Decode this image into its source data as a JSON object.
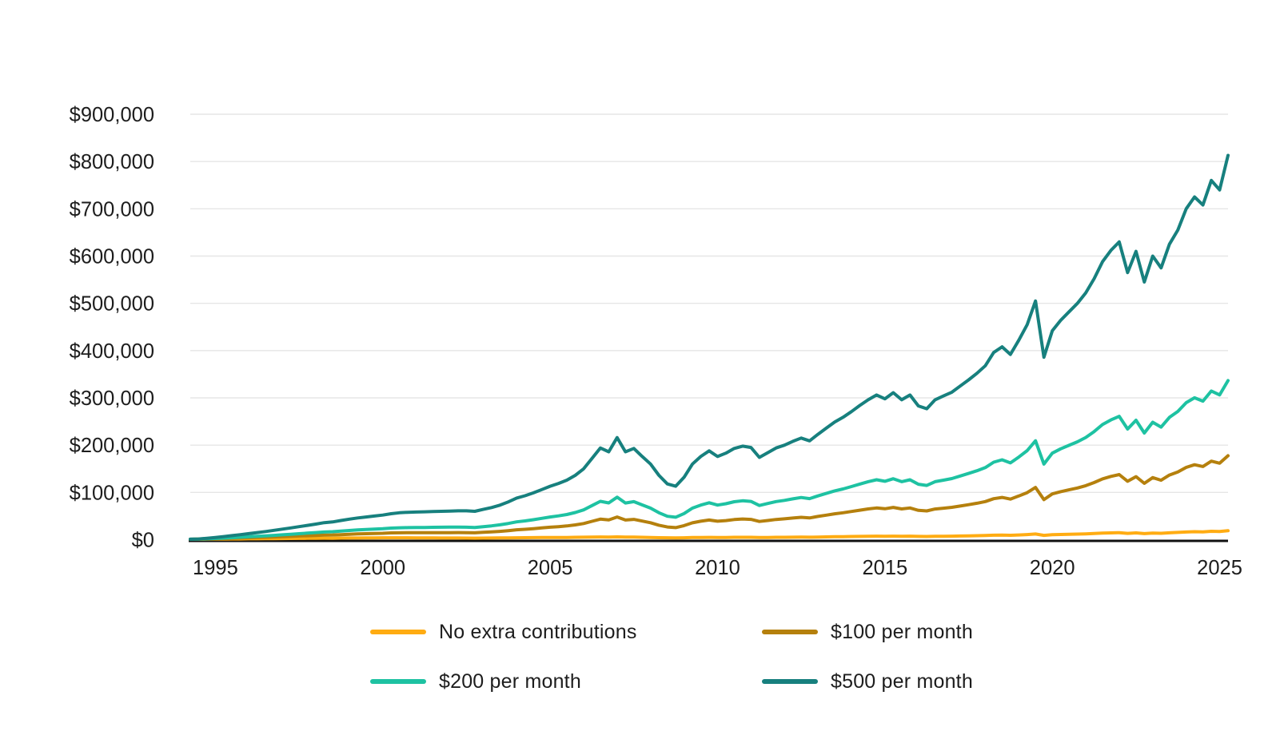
{
  "chart_data": {
    "type": "line",
    "title": "",
    "description_visible_text_only": "",
    "x_start_year": 1994.25,
    "x_step_years": 0.25,
    "x_end_year": 2025.25,
    "values_unit": "USD thousands",
    "x_axis": {
      "tick_years": [
        1995,
        2000,
        2005,
        2010,
        2015,
        2020,
        2025
      ],
      "tick_labels": [
        "1995",
        "2000",
        "2005",
        "2010",
        "2015",
        "2020",
        "2025"
      ]
    },
    "y_axis": {
      "max_thousands": 900,
      "tick_values_thousands": [
        0,
        100,
        200,
        300,
        400,
        500,
        600,
        700,
        800,
        900
      ],
      "tick_labels": [
        "$0",
        "$100,000",
        "$200,000",
        "$300,000",
        "$400,000",
        "$500,000",
        "$600,000",
        "$700,000",
        "$800,000",
        "$900,000"
      ]
    },
    "grid": true,
    "legend_position": "bottom",
    "legend_columns": 2,
    "series": [
      {
        "name": "No extra contributions",
        "color": "#FFAC12",
        "values": [
          0.9,
          1.0,
          1.1,
          1.2,
          1.3,
          1.5,
          1.6,
          1.8,
          1.9,
          2.0,
          2.2,
          2.3,
          2.5,
          2.7,
          2.9,
          3.0,
          3.2,
          3.1,
          3.3,
          3.5,
          3.6,
          3.7,
          3.9,
          4.0,
          4.1,
          4.1,
          4.0,
          3.9,
          3.8,
          3.7,
          3.6,
          3.5,
          3.5,
          3.4,
          3.2,
          3.4,
          3.5,
          3.7,
          3.9,
          4.1,
          4.2,
          4.4,
          4.5,
          4.6,
          4.7,
          4.8,
          5.0,
          5.2,
          5.5,
          5.8,
          5.6,
          6.0,
          5.4,
          5.5,
          5.1,
          4.7,
          4.3,
          4.0,
          3.8,
          4.1,
          4.5,
          4.7,
          4.9,
          4.7,
          4.8,
          5.0,
          5.1,
          5.0,
          4.6,
          4.8,
          5.0,
          5.1,
          5.3,
          5.4,
          5.3,
          5.6,
          5.9,
          6.2,
          6.4,
          6.7,
          6.9,
          7.2,
          7.4,
          7.2,
          7.5,
          7.2,
          7.4,
          6.9,
          6.7,
          7.1,
          7.3,
          7.5,
          7.8,
          8.1,
          8.4,
          8.8,
          9.4,
          9.7,
          9.3,
          10.0,
          10.8,
          12.0,
          9.2,
          10.5,
          11.0,
          11.4,
          11.8,
          12.3,
          13.0,
          13.8,
          14.4,
          14.8,
          13.3,
          14.3,
          12.8,
          14.1,
          13.5,
          14.6,
          15.3,
          16.3,
          16.9,
          16.5,
          17.7,
          17.2,
          18.9
        ]
      },
      {
        "name": "$100 per month",
        "color": "#B5800D",
        "values": [
          0.9,
          1.1,
          1.5,
          1.9,
          2.4,
          2.9,
          3.4,
          4.0,
          4.5,
          5.1,
          5.7,
          6.3,
          7.0,
          7.7,
          8.3,
          9.0,
          9.8,
          10.0,
          10.7,
          11.5,
          12.1,
          12.6,
          13.1,
          13.6,
          14.3,
          14.6,
          14.8,
          14.8,
          14.8,
          14.9,
          14.9,
          14.9,
          15.0,
          14.9,
          14.6,
          15.5,
          16.4,
          17.6,
          19.1,
          20.9,
          22.0,
          23.3,
          24.8,
          26.3,
          27.6,
          29.0,
          31.2,
          34.2,
          38.8,
          43.4,
          41.7,
          48.0,
          41.5,
          43.0,
          39.3,
          35.8,
          30.6,
          26.8,
          25.6,
          29.7,
          35.6,
          39.0,
          41.5,
          39.0,
          40.4,
          42.6,
          43.7,
          43.0,
          38.5,
          40.6,
          42.8,
          44.1,
          45.8,
          47.3,
          46.0,
          49.1,
          51.9,
          54.8,
          56.9,
          59.6,
          62.3,
          65.0,
          67.1,
          65.4,
          68.2,
          65.0,
          67.1,
          62.1,
          60.8,
          64.9,
          66.6,
          68.4,
          71.2,
          74.1,
          77.1,
          80.6,
          86.7,
          89.4,
          85.8,
          92.4,
          99.6,
          110.6,
          84.6,
          96.8,
          101.6,
          105.5,
          109.4,
          114.2,
          120.8,
          128.6,
          133.9,
          137.8,
          123.6,
          133.4,
          119.2,
          131.3,
          125.8,
          136.7,
          143.2,
          153.0,
          158.5,
          154.8,
          166.2,
          161.8,
          177.7
        ]
      },
      {
        "name": "$200 per month",
        "color": "#1EC2A2",
        "values": [
          1.0,
          1.2,
          1.9,
          2.6,
          3.4,
          4.3,
          5.2,
          6.2,
          7.1,
          8.1,
          9.2,
          10.3,
          11.4,
          12.7,
          13.8,
          15.0,
          16.3,
          16.9,
          18.2,
          19.5,
          20.6,
          21.4,
          22.3,
          23.2,
          24.5,
          25.2,
          25.6,
          25.7,
          25.9,
          26.2,
          26.3,
          26.5,
          26.5,
          26.4,
          25.9,
          27.6,
          29.3,
          31.4,
          34.3,
          37.7,
          39.7,
          42.2,
          45.1,
          48.0,
          50.4,
          53.3,
          57.4,
          63.1,
          72.1,
          81.1,
          77.8,
          90.0,
          77.6,
          80.5,
          73.5,
          66.8,
          57.0,
          49.6,
          47.5,
          55.3,
          66.7,
          73.2,
          78.1,
          73.2,
          76.1,
          80.2,
          82.3,
          81.0,
          72.4,
          76.5,
          80.6,
          83.1,
          86.4,
          89.2,
          86.8,
          92.6,
          97.9,
          103.3,
          107.4,
          112.4,
          117.7,
          122.7,
          126.8,
          123.5,
          128.9,
          122.7,
          126.8,
          117.3,
          114.8,
          122.7,
          126.0,
          129.3,
          134.7,
          140.1,
          145.8,
          152.5,
          164.0,
          169.0,
          162.4,
          174.8,
          188.5,
          209.2,
          159.9,
          183.1,
          192.2,
          199.6,
          207.1,
          216.2,
          228.6,
          243.5,
          253.4,
          260.9,
          234.0,
          252.6,
          225.7,
          248.5,
          238.1,
          258.8,
          271.2,
          289.8,
          300.1,
          293.1,
          314.6,
          306.3,
          336.5
        ]
      },
      {
        "name": "$500 per month",
        "color": "#17807E",
        "values": [
          1.0,
          1.5,
          3.0,
          4.8,
          6.6,
          8.6,
          10.6,
          12.8,
          15.0,
          17.3,
          19.8,
          22.3,
          24.8,
          27.6,
          30.2,
          33.0,
          36.0,
          37.5,
          40.5,
          43.5,
          46.0,
          48.0,
          50.0,
          52.0,
          55.0,
          57.0,
          58.0,
          58.5,
          59.0,
          59.5,
          60.0,
          60.5,
          61.0,
          61.0,
          60.0,
          64.0,
          68.0,
          73.0,
          80.0,
          88.0,
          93.0,
          99.0,
          106.0,
          113.0,
          119.0,
          126.0,
          136.0,
          150.0,
          172.0,
          194.0,
          186.0,
          216.0,
          186.0,
          193.0,
          176.0,
          160.0,
          136.0,
          118.0,
          113.0,
          132.0,
          160.0,
          176.0,
          188.0,
          176.0,
          183.0,
          193.0,
          198.0,
          195.0,
          174.0,
          184.0,
          194.0,
          200.0,
          208.0,
          215.0,
          209.0,
          223.0,
          236.0,
          249.0,
          259.0,
          271.0,
          284.0,
          296.0,
          306.0,
          298.0,
          311.0,
          296.0,
          306.0,
          283.0,
          277.0,
          296.0,
          304.0,
          312.0,
          325.0,
          338.0,
          352.0,
          368.0,
          396.0,
          408.0,
          392.0,
          422.0,
          455.0,
          505.0,
          386.0,
          442.0,
          464.0,
          482.0,
          500.0,
          522.0,
          552.0,
          588.0,
          612.0,
          630.0,
          565.0,
          610.0,
          545.0,
          600.0,
          575.0,
          625.0,
          655.0,
          700.0,
          725.0,
          708.0,
          760.0,
          740.0,
          813.0
        ]
      }
    ]
  },
  "styles": {
    "background": "#ffffff",
    "text_color": "#1d1d1d",
    "gridline_color": "#e6e6e6",
    "axis_line_color": "#111111"
  },
  "legend": {
    "items": [
      {
        "label": "No extra contributions",
        "series_index": 0
      },
      {
        "label": "$100 per month",
        "series_index": 1
      },
      {
        "label": "$200 per month",
        "series_index": 2
      },
      {
        "label": "$500 per month",
        "series_index": 3
      }
    ]
  }
}
